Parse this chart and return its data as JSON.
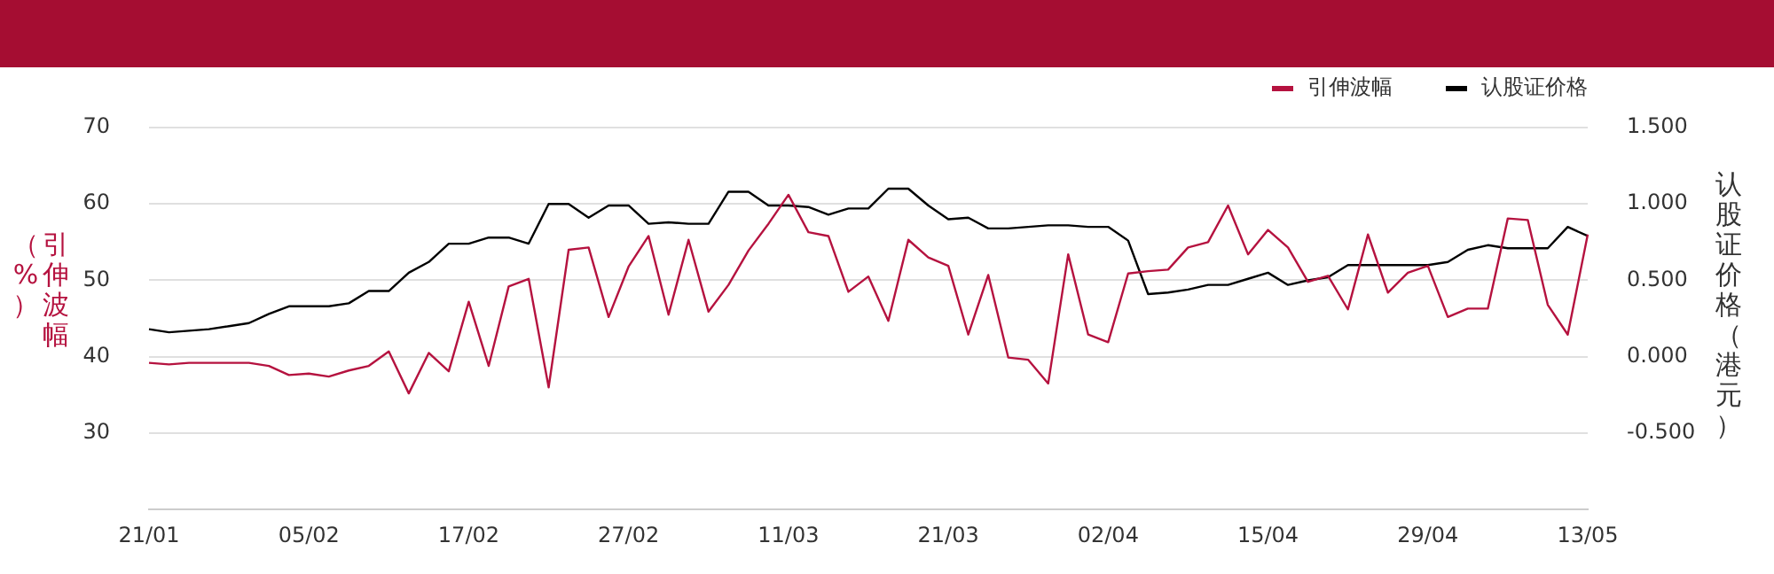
{
  "chart_data": {
    "type": "line",
    "categories": [
      "21/01",
      null,
      null,
      null,
      null,
      null,
      null,
      null,
      "05/02",
      null,
      null,
      null,
      null,
      null,
      null,
      null,
      "17/02",
      null,
      null,
      null,
      null,
      null,
      null,
      null,
      "27/02",
      null,
      null,
      null,
      null,
      null,
      null,
      null,
      "11/03",
      null,
      null,
      null,
      null,
      null,
      null,
      null,
      "21/03",
      null,
      null,
      null,
      null,
      null,
      null,
      null,
      "02/04",
      null,
      null,
      null,
      null,
      null,
      null,
      null,
      "15/04",
      null,
      null,
      null,
      null,
      null,
      null,
      null,
      "29/04",
      null,
      null,
      null,
      null,
      null,
      null,
      null,
      "13/05"
    ],
    "series": [
      {
        "name": "引伸波幅",
        "color": "#b5123f",
        "values": [
          39.2,
          39.0,
          39.2,
          39.2,
          39.2,
          39.2,
          38.8,
          37.6,
          37.8,
          37.4,
          38.2,
          38.8,
          40.7,
          35.2,
          40.5,
          38.1,
          47.2,
          38.8,
          49.2,
          50.2,
          36.0,
          54.0,
          54.3,
          45.2,
          51.8,
          55.8,
          45.5,
          55.3,
          45.9,
          49.4,
          53.9,
          57.4,
          61.2,
          56.3,
          55.8,
          48.5,
          50.5,
          44.7,
          55.3,
          53.0,
          51.9,
          42.9,
          50.7,
          39.9,
          39.6,
          36.5,
          53.4,
          42.9,
          41.9,
          50.9,
          51.2,
          51.4,
          54.3,
          55.0,
          59.8,
          53.4,
          56.6,
          54.3,
          49.8,
          50.6,
          46.2,
          56.0,
          48.4,
          51.0,
          51.9,
          45.2,
          46.3,
          46.3,
          58.1,
          57.9,
          46.8,
          42.9,
          56.0
        ]
      },
      {
        "name": "认股证价格",
        "color": "#000000",
        "axis": "y2",
        "values": [
          0.18,
          0.16,
          0.17,
          0.18,
          0.2,
          0.22,
          0.28,
          0.33,
          0.33,
          0.33,
          0.35,
          0.43,
          0.43,
          0.55,
          0.62,
          0.74,
          0.74,
          0.78,
          0.78,
          0.74,
          1.0,
          1.0,
          0.91,
          0.99,
          0.99,
          0.87,
          0.88,
          0.87,
          0.87,
          1.08,
          1.08,
          0.99,
          0.99,
          0.98,
          0.93,
          0.97,
          0.97,
          1.1,
          1.1,
          0.99,
          0.9,
          0.91,
          0.84,
          0.84,
          0.85,
          0.86,
          0.86,
          0.85,
          0.85,
          0.76,
          0.41,
          0.42,
          0.44,
          0.47,
          0.47,
          0.51,
          0.55,
          0.47,
          0.5,
          0.52,
          0.6,
          0.6,
          0.6,
          0.6,
          0.6,
          0.62,
          0.7,
          0.73,
          0.71,
          0.71,
          0.71,
          0.85,
          0.79
        ]
      }
    ],
    "ylabel": "引伸波幅（%）",
    "y2label": "认股证价格（港元）",
    "ylim": [
      20,
      70
    ],
    "yticks": [
      {
        "value": 20,
        "label": null
      },
      30,
      40,
      50,
      60,
      70
    ],
    "y2lim": [
      -1,
      1.5
    ],
    "y2ticks": [
      {
        "value": -1,
        "label": null
      },
      {
        "value": -0.5,
        "label": "-0.500"
      },
      {
        "value": 0,
        "label": "0.000"
      },
      {
        "value": 0.5,
        "label": "0.500"
      },
      {
        "value": 1,
        "label": "1.000"
      },
      {
        "value": 1.5,
        "label": "1.500"
      }
    ],
    "grid": "y",
    "legend": "top right",
    "marker": "none",
    "line_style": "solid"
  }
}
